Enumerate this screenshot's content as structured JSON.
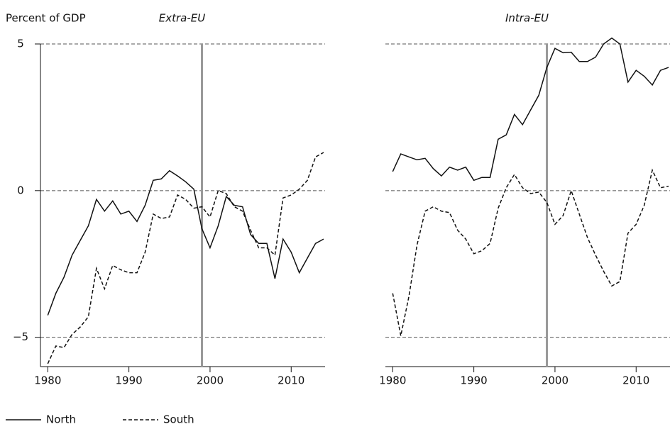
{
  "chart_data": [
    {
      "type": "line",
      "title": "Extra-EU",
      "y_label": "Percent of GDP",
      "x": [
        1980,
        1981,
        1982,
        1983,
        1984,
        1985,
        1986,
        1987,
        1988,
        1989,
        1990,
        1991,
        1992,
        1993,
        1994,
        1995,
        1996,
        1997,
        1998,
        1999,
        2000,
        2001,
        2002,
        2003,
        2004,
        2005,
        2006,
        2007,
        2008,
        2009,
        2010,
        2011,
        2012,
        2013,
        2014
      ],
      "series": [
        {
          "name": "North",
          "color": "#111111",
          "dash": "solid",
          "values": [
            -4.25,
            -3.5,
            -2.95,
            -2.2,
            -1.7,
            -1.2,
            -0.3,
            -0.7,
            -0.35,
            -0.8,
            -0.7,
            -1.05,
            -0.5,
            0.35,
            0.4,
            0.68,
            0.5,
            0.3,
            0.05,
            -1.3,
            -1.95,
            -1.2,
            -0.2,
            -0.5,
            -0.55,
            -1.5,
            -1.8,
            -1.8,
            -3.0,
            -1.65,
            -2.1,
            -2.8,
            -2.3,
            -1.8,
            -1.65
          ]
        },
        {
          "name": "South",
          "color": "#111111",
          "dash": "dashed",
          "values": [
            -5.9,
            -5.3,
            -5.35,
            -4.9,
            -4.65,
            -4.3,
            -2.65,
            -3.35,
            -2.55,
            -2.7,
            -2.8,
            -2.8,
            -2.1,
            -0.8,
            -0.95,
            -0.9,
            -0.15,
            -0.3,
            -0.6,
            -0.55,
            -0.9,
            0.0,
            -0.1,
            -0.55,
            -0.7,
            -1.35,
            -1.95,
            -1.95,
            -2.2,
            -0.25,
            -0.15,
            0.05,
            0.35,
            1.15,
            1.3
          ]
        }
      ],
      "vline": 1999,
      "vline_color": "#999999",
      "xlim": [
        1979.1,
        2014
      ],
      "ylim": [
        -6,
        5
      ],
      "xticks": [
        1980,
        1990,
        2000,
        2010
      ],
      "yticks": [
        5,
        0,
        {
          "value": -5,
          "label": "−5"
        }
      ],
      "grid": true
    },
    {
      "type": "line",
      "title": "Intra-EU",
      "x": [
        1980,
        1981,
        1982,
        1983,
        1984,
        1985,
        1986,
        1987,
        1988,
        1989,
        1990,
        1991,
        1992,
        1993,
        1994,
        1995,
        1996,
        1997,
        1998,
        1999,
        2000,
        2001,
        2002,
        2003,
        2004,
        2005,
        2006,
        2007,
        2008,
        2009,
        2010,
        2011,
        2012,
        2013,
        2014
      ],
      "series": [
        {
          "name": "North",
          "color": "#111111",
          "dash": "solid",
          "values": [
            0.65,
            1.25,
            1.15,
            1.05,
            1.1,
            0.75,
            0.5,
            0.8,
            0.7,
            0.8,
            0.35,
            0.45,
            0.45,
            1.75,
            1.9,
            2.6,
            2.25,
            2.75,
            3.25,
            4.2,
            4.85,
            4.7,
            4.72,
            4.4,
            4.4,
            4.55,
            5.0,
            5.2,
            5.0,
            3.7,
            4.1,
            3.9,
            3.6,
            4.1,
            4.2
          ]
        },
        {
          "name": "South",
          "color": "#111111",
          "dash": "dashed",
          "values": [
            -3.5,
            -4.95,
            -3.6,
            -1.85,
            -0.7,
            -0.55,
            -0.7,
            -0.75,
            -1.35,
            -1.65,
            -2.15,
            -2.05,
            -1.8,
            -0.6,
            0.1,
            0.55,
            0.1,
            -0.1,
            -0.05,
            -0.4,
            -1.15,
            -0.85,
            0.0,
            -0.8,
            -1.6,
            -2.2,
            -2.75,
            -3.25,
            -3.1,
            -1.45,
            -1.15,
            -0.5,
            0.7,
            0.1,
            0.15
          ]
        }
      ],
      "vline": 1999,
      "vline_color": "#999999",
      "xlim": [
        1979.1,
        2014
      ],
      "ylim": [
        -6,
        5
      ],
      "xticks": [
        1980,
        1990,
        2000,
        2010
      ],
      "yticks": [
        5,
        0,
        -5
      ],
      "grid": true
    }
  ]
}
